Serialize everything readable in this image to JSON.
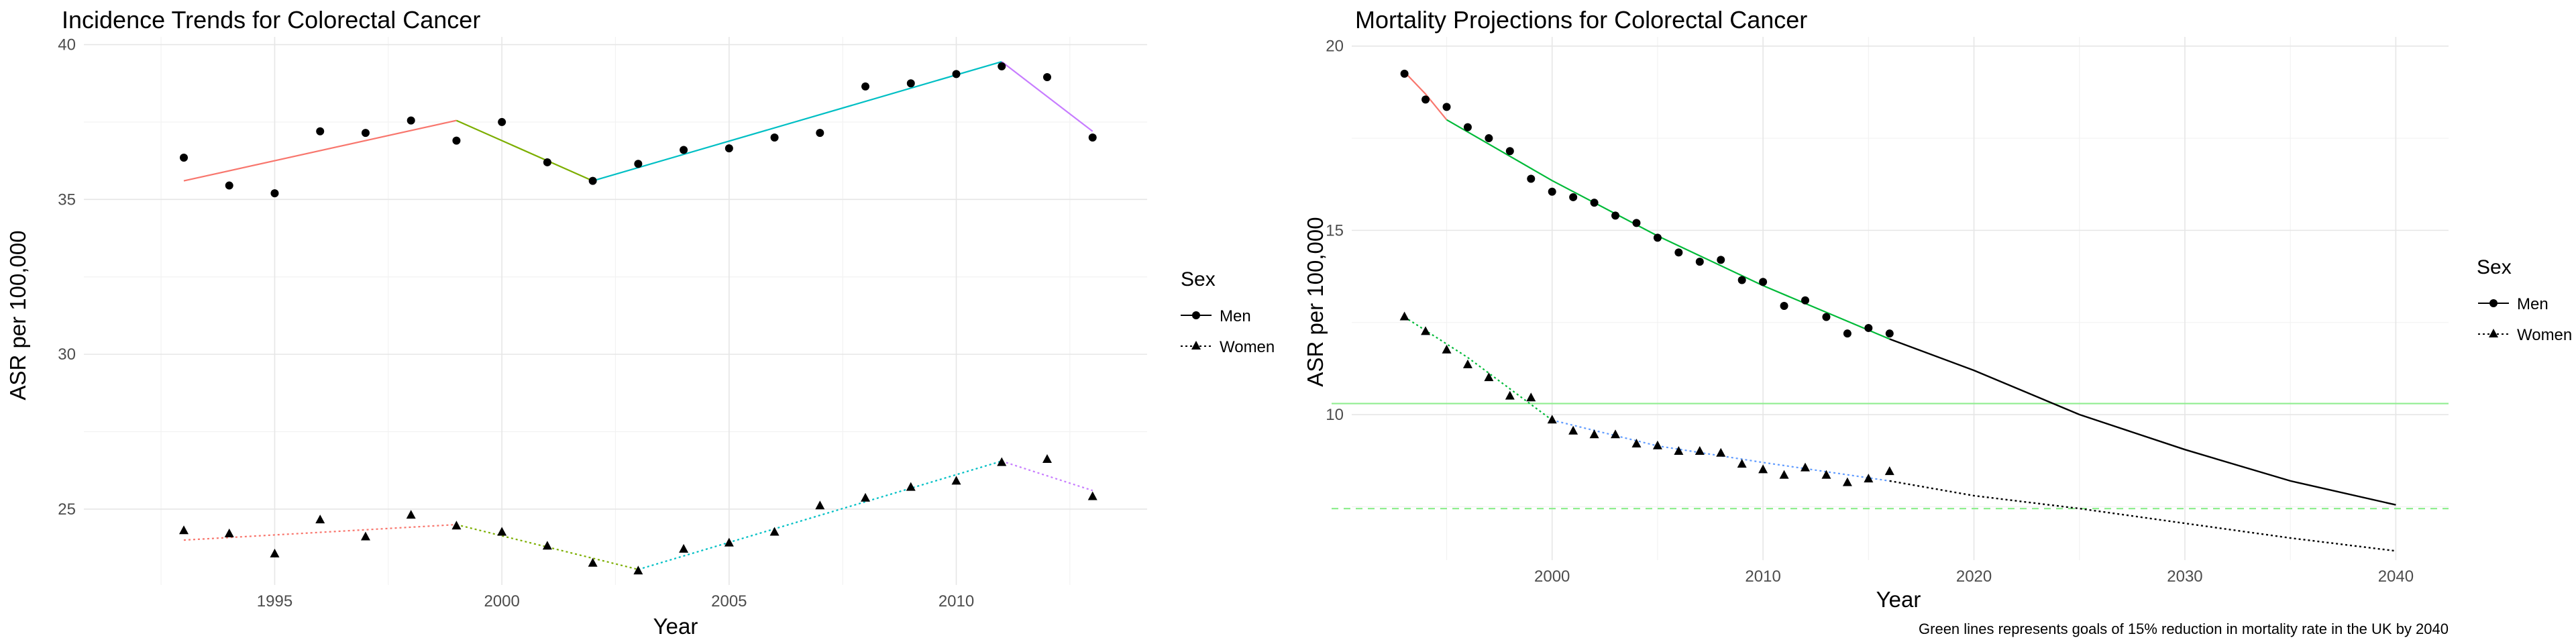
{
  "chart_data": [
    {
      "type": "line",
      "title": "Incidence Trends for Colorectal Cancer",
      "xlabel": "Year",
      "ylabel": "ASR per 100,000",
      "xlim": [
        1990.8,
        2014.2
      ],
      "ylim": [
        22.55,
        40.25
      ],
      "xticks": [
        1995,
        2000,
        2005,
        2010
      ],
      "yticks": [
        25,
        30,
        35,
        40
      ],
      "grid": true,
      "legend": {
        "title": "Sex",
        "position": "right",
        "items": [
          "Men",
          "Women"
        ]
      },
      "points": {
        "Men": {
          "x": [
            1993,
            1994,
            1995,
            1996,
            1997,
            1998,
            1999,
            2000,
            2001,
            2002,
            2003,
            2004,
            2005,
            2006,
            2007,
            2008,
            2009,
            2010,
            2011,
            2012,
            2013
          ],
          "y": [
            36.35,
            35.45,
            35.2,
            37.2,
            37.15,
            37.55,
            36.9,
            37.5,
            36.2,
            35.6,
            36.15,
            36.6,
            36.65,
            37.0,
            37.15,
            38.65,
            38.75,
            39.05,
            39.3,
            38.95,
            37.0
          ]
        },
        "Women": {
          "x": [
            1993,
            1994,
            1995,
            1996,
            1997,
            1998,
            1999,
            2000,
            2001,
            2002,
            2003,
            2004,
            2005,
            2006,
            2007,
            2008,
            2009,
            2010,
            2011,
            2012,
            2013
          ],
          "y": [
            24.3,
            24.2,
            23.55,
            24.65,
            24.1,
            24.8,
            24.45,
            24.25,
            23.8,
            23.25,
            23.0,
            23.7,
            23.9,
            24.25,
            25.1,
            25.35,
            25.7,
            25.9,
            26.5,
            26.6,
            25.4
          ]
        }
      },
      "trend_segments": [
        {
          "sex": "Men",
          "color": "#F8766D",
          "x": [
            1993,
            1999
          ],
          "y": [
            35.6,
            37.55
          ]
        },
        {
          "sex": "Men",
          "color": "#7CAE00",
          "x": [
            1999,
            2002
          ],
          "y": [
            37.55,
            35.6
          ]
        },
        {
          "sex": "Men",
          "color": "#00BFC4",
          "x": [
            2002,
            2011
          ],
          "y": [
            35.6,
            39.45
          ]
        },
        {
          "sex": "Men",
          "color": "#C77CFF",
          "x": [
            2011,
            2013
          ],
          "y": [
            39.45,
            37.2
          ]
        },
        {
          "sex": "Women",
          "color": "#F8766D",
          "x": [
            1993,
            1999
          ],
          "y": [
            24.0,
            24.5
          ]
        },
        {
          "sex": "Women",
          "color": "#7CAE00",
          "x": [
            1999,
            2003
          ],
          "y": [
            24.5,
            23.05
          ]
        },
        {
          "sex": "Women",
          "color": "#00BFC4",
          "x": [
            2003,
            2011
          ],
          "y": [
            23.05,
            26.55
          ]
        },
        {
          "sex": "Women",
          "color": "#C77CFF",
          "x": [
            2011,
            2013
          ],
          "y": [
            26.55,
            25.6
          ]
        }
      ]
    },
    {
      "type": "line",
      "title": "Mortality Projections for Colorectal Cancer",
      "xlabel": "Year",
      "ylabel": "ASR per 100,000",
      "xlim": [
        1990.5,
        2042.5
      ],
      "ylim": [
        6.05,
        20.25
      ],
      "xticks": [
        2000,
        2010,
        2020,
        2030,
        2040
      ],
      "yticks": [
        10,
        15,
        20
      ],
      "grid": true,
      "legend": {
        "title": "Sex",
        "position": "right",
        "items": [
          "Men",
          "Women"
        ]
      },
      "caption": "Green lines represents goals of 15% reduction in mortality rate in the UK by 2040",
      "goal_lines": [
        {
          "sex": "Men",
          "y": 10.3,
          "color": "#90EE90",
          "style": "solid"
        },
        {
          "sex": "Women",
          "y": 7.45,
          "color": "#90EE90",
          "style": "dashed"
        }
      ],
      "points": {
        "Men": {
          "x": [
            1993,
            1994,
            1995,
            1996,
            1997,
            1998,
            1999,
            2000,
            2001,
            2002,
            2003,
            2004,
            2005,
            2006,
            2007,
            2008,
            2009,
            2010,
            2011,
            2012,
            2013,
            2014,
            2015,
            2016
          ],
          "y": [
            19.25,
            18.55,
            18.35,
            17.8,
            17.5,
            17.15,
            16.4,
            16.05,
            15.9,
            15.75,
            15.4,
            15.2,
            14.8,
            14.4,
            14.15,
            14.2,
            13.65,
            13.6,
            12.95,
            13.1,
            12.65,
            12.2,
            12.35,
            12.2
          ]
        },
        "Women": {
          "x": [
            1993,
            1994,
            1995,
            1996,
            1997,
            1998,
            1999,
            2000,
            2001,
            2002,
            2003,
            2004,
            2005,
            2006,
            2007,
            2008,
            2009,
            2010,
            2011,
            2012,
            2013,
            2014,
            2015,
            2016
          ],
          "y": [
            12.65,
            12.25,
            11.75,
            11.35,
            11.0,
            10.5,
            10.45,
            9.85,
            9.55,
            9.45,
            9.45,
            9.2,
            9.15,
            9.0,
            9.0,
            8.95,
            8.65,
            8.5,
            8.35,
            8.55,
            8.35,
            8.15,
            8.25,
            8.45
          ]
        }
      },
      "fitted_segments": [
        {
          "sex": "Men",
          "color": "#F8766D",
          "x": [
            1993,
            1994,
            1995
          ],
          "y": [
            19.3,
            18.7,
            18.0
          ]
        },
        {
          "sex": "Men",
          "color": "#00BA38",
          "x": [
            1995,
            2000,
            2005,
            2010,
            2016
          ],
          "y": [
            18.0,
            16.35,
            14.85,
            13.5,
            12.05
          ]
        },
        {
          "sex": "Women",
          "color": "#00BA38",
          "x": [
            1993,
            1996,
            2000
          ],
          "y": [
            12.65,
            11.55,
            9.85
          ]
        },
        {
          "sex": "Women",
          "color": "#619CFF",
          "x": [
            2000,
            2005,
            2010,
            2016
          ],
          "y": [
            9.85,
            9.15,
            8.7,
            8.2
          ]
        }
      ],
      "projection": {
        "Men": {
          "x": [
            2016,
            2020,
            2025,
            2030,
            2035,
            2040
          ],
          "y": [
            12.05,
            11.2,
            10.0,
            9.05,
            8.2,
            7.55
          ]
        },
        "Women": {
          "x": [
            2016,
            2020,
            2025,
            2030,
            2035,
            2040
          ],
          "y": [
            8.2,
            7.8,
            7.45,
            7.05,
            6.65,
            6.3
          ]
        }
      }
    }
  ]
}
